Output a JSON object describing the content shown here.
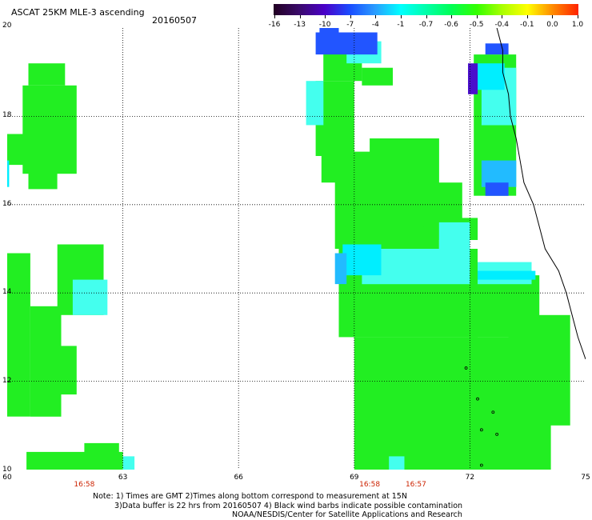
{
  "header": {
    "title": "ASCAT 25KM MLE-3 ascending",
    "date": "20160507"
  },
  "colorbar": {
    "labels": [
      "-16",
      "-13",
      "-10",
      "-7",
      "-4",
      "-1",
      "-0.7",
      "-0.6",
      "-0.5",
      "-0.4",
      "-0.1",
      "0.0",
      "1.0"
    ],
    "colors": [
      "#220022",
      "#3a0a6a",
      "#4a00c8",
      "#1a4cff",
      "#2a9cff",
      "#00ffff",
      "#00ffaa",
      "#00ff55",
      "#33ff00",
      "#aaff00",
      "#ffff00",
      "#ff8800",
      "#ff2200"
    ]
  },
  "map": {
    "lat_labels": [
      "20",
      "18",
      "16",
      "14",
      "12",
      "10"
    ],
    "lon_labels": [
      "60",
      "63",
      "66",
      "69",
      "72",
      "75"
    ],
    "lat_range": [
      10,
      20
    ],
    "lon_range": [
      60,
      75
    ],
    "grid": "dotted",
    "time_labels": [
      {
        "lon": 62,
        "text": "16:58"
      },
      {
        "lon": 69.4,
        "text": "16:58"
      },
      {
        "lon": 70.6,
        "text": "16:57"
      }
    ],
    "colors": {
      "green": "#22ee22",
      "bright_green": "#11ff22",
      "cyan_light": "#44ffee",
      "cyan": "#00eeff",
      "sky": "#22bbff",
      "blue": "#2255ff",
      "purple": "#4a10cc",
      "coast": "#000000"
    }
  },
  "footer": {
    "note1": "Note: 1) Times are GMT 2)Times along bottom correspond to measurement at 15N",
    "note2": "3)Data buffer is 22 hrs from 20160507 4) Black wind barbs indicate possible contamination",
    "credit": "NOAA/NESDIS/Center for Satellite Applications and Research"
  }
}
